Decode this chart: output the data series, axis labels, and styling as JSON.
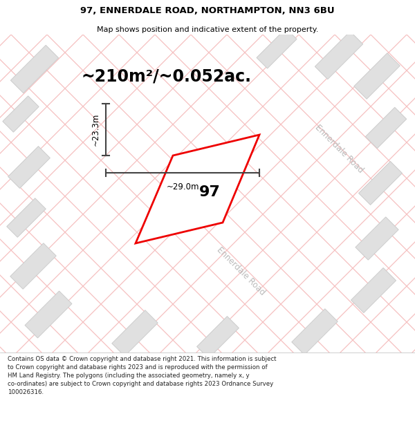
{
  "title_line1": "97, ENNERDALE ROAD, NORTHAMPTON, NN3 6BU",
  "title_line2": "Map shows position and indicative extent of the property.",
  "area_text": "~210m²/~0.052ac.",
  "width_label": "~29.0m",
  "height_label": "~23.3m",
  "property_number": "97",
  "road_label": "Ennerdale Road",
  "footer_lines": [
    "Contains OS data © Crown copyright and database right 2021. This information is subject",
    "to Crown copyright and database rights 2023 and is reproduced with the permission of",
    "HM Land Registry. The polygons (including the associated geometry, namely x, y",
    "co-ordinates) are subject to Crown copyright and database rights 2023 Ordnance Survey",
    "100026316."
  ],
  "map_bg_color": "#f2f2f2",
  "title_bg_color": "#ffffff",
  "footer_bg_color": "#ffffff",
  "plot_outline_color": "#ee0000",
  "plot_fill_color": "#ffffff",
  "dimension_line_color": "#444444",
  "road_text_color": "#bbbbbb",
  "building_fill": "#e0e0e0",
  "building_stroke": "#cccccc",
  "diagonal_road_lines_color": "#f5c0c0",
  "title_fontsize": 9.5,
  "subtitle_fontsize": 8.0,
  "area_fontsize": 17,
  "prop_num_fontsize": 16,
  "dim_fontsize": 8.5,
  "road_fontsize": 8.5,
  "footer_fontsize": 6.2
}
